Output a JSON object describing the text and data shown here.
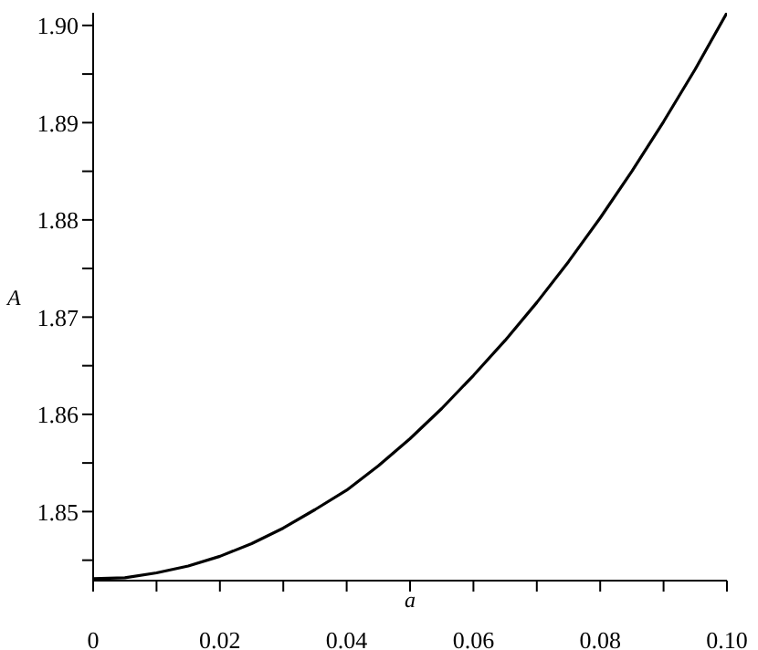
{
  "chart_data": {
    "type": "line",
    "xlabel": "a",
    "ylabel": "A",
    "x": [
      0,
      0.005,
      0.01,
      0.015,
      0.02,
      0.025,
      0.03,
      0.035,
      0.04,
      0.045,
      0.05,
      0.055,
      0.06,
      0.065,
      0.07,
      0.075,
      0.08,
      0.085,
      0.09,
      0.095,
      0.1
    ],
    "series": [
      {
        "color": "#000000",
        "values": [
          1.8431,
          1.8432,
          1.8437,
          1.8444,
          1.8454,
          1.8467,
          1.8483,
          1.8502,
          1.8522,
          1.8547,
          1.8575,
          1.8606,
          1.864,
          1.8676,
          1.8715,
          1.8757,
          1.8802,
          1.885,
          1.8901,
          1.8955,
          1.9013
        ]
      }
    ],
    "xlim": [
      0,
      0.1
    ],
    "ylim": [
      1.8429,
      1.9013
    ],
    "xticks": [
      0,
      {
        "value": 0.01,
        "label": null
      },
      0.02,
      {
        "value": 0.03,
        "label": null
      },
      0.04,
      {
        "value": 0.05,
        "label": null
      },
      0.06,
      {
        "value": 0.07,
        "label": null
      },
      0.08,
      {
        "value": 0.09,
        "label": null
      },
      {
        "value": 0.1,
        "label": "0.10"
      }
    ],
    "yticks": [
      {
        "value": 1.845,
        "label": null
      },
      1.85,
      {
        "value": 1.855,
        "label": null
      },
      1.86,
      {
        "value": 1.865,
        "label": null
      },
      1.87,
      {
        "value": 1.875,
        "label": null
      },
      1.88,
      {
        "value": 1.885,
        "label": null
      },
      1.89,
      {
        "value": 1.895,
        "label": null
      },
      {
        "value": 1.9,
        "label": "1.90"
      }
    ],
    "grid": false,
    "legend": false,
    "marker": "none",
    "line_style": "solid"
  }
}
